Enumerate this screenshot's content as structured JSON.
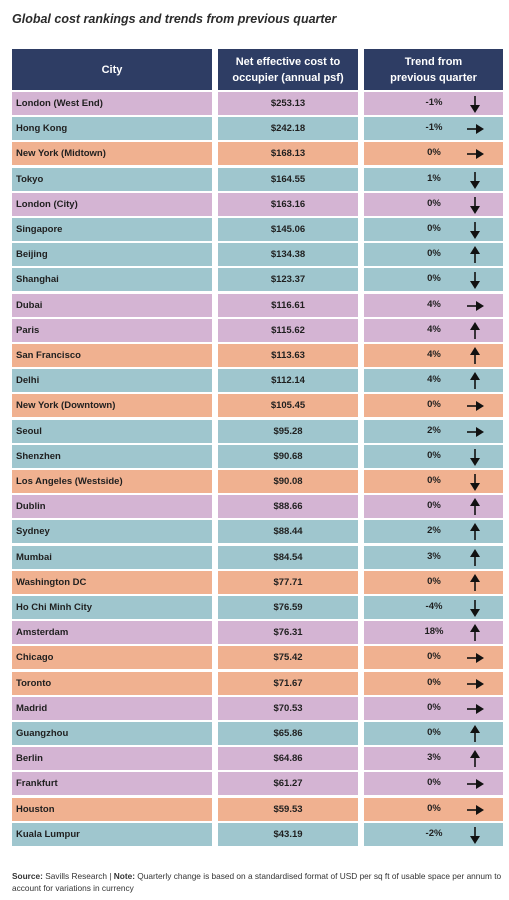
{
  "title": "Global cost rankings and trends from previous quarter",
  "chart_data": {
    "type": "table",
    "columns": [
      "City",
      "Net effective cost to occupier (annual psf)",
      "Trend from previous quarter"
    ],
    "rows": [
      {
        "city": "London (West End)",
        "cost": "$253.13",
        "trend": "-1%",
        "arrow": "down",
        "color": "lilac"
      },
      {
        "city": "Hong Kong",
        "cost": "$242.18",
        "trend": "-1%",
        "arrow": "right",
        "color": "teal"
      },
      {
        "city": "New York (Midtown)",
        "cost": "$168.13",
        "trend": "0%",
        "arrow": "right",
        "color": "orange"
      },
      {
        "city": "Tokyo",
        "cost": "$164.55",
        "trend": "1%",
        "arrow": "down",
        "color": "teal"
      },
      {
        "city": "London (City)",
        "cost": "$163.16",
        "trend": "0%",
        "arrow": "down",
        "color": "lilac"
      },
      {
        "city": "Singapore",
        "cost": "$145.06",
        "trend": "0%",
        "arrow": "down",
        "color": "teal"
      },
      {
        "city": "Beijing",
        "cost": "$134.38",
        "trend": "0%",
        "arrow": "up",
        "color": "teal"
      },
      {
        "city": "Shanghai",
        "cost": "$123.37",
        "trend": "0%",
        "arrow": "down",
        "color": "teal"
      },
      {
        "city": "Dubai",
        "cost": "$116.61",
        "trend": "4%",
        "arrow": "right",
        "color": "lilac"
      },
      {
        "city": "Paris",
        "cost": "$115.62",
        "trend": "4%",
        "arrow": "up",
        "color": "lilac"
      },
      {
        "city": "San Francisco",
        "cost": "$113.63",
        "trend": "4%",
        "arrow": "up",
        "color": "orange"
      },
      {
        "city": "Delhi",
        "cost": "$112.14",
        "trend": "4%",
        "arrow": "up",
        "color": "teal"
      },
      {
        "city": "New York (Downtown)",
        "cost": "$105.45",
        "trend": "0%",
        "arrow": "right",
        "color": "orange"
      },
      {
        "city": "Seoul",
        "cost": "$95.28",
        "trend": "2%",
        "arrow": "right",
        "color": "teal"
      },
      {
        "city": "Shenzhen",
        "cost": "$90.68",
        "trend": "0%",
        "arrow": "down",
        "color": "teal"
      },
      {
        "city": "Los Angeles (Westside)",
        "cost": "$90.08",
        "trend": "0%",
        "arrow": "down",
        "color": "orange"
      },
      {
        "city": "Dublin",
        "cost": "$88.66",
        "trend": "0%",
        "arrow": "up",
        "color": "lilac"
      },
      {
        "city": "Sydney",
        "cost": "$88.44",
        "trend": "2%",
        "arrow": "up",
        "color": "teal"
      },
      {
        "city": "Mumbai",
        "cost": "$84.54",
        "trend": "3%",
        "arrow": "up",
        "color": "teal"
      },
      {
        "city": "Washington DC",
        "cost": "$77.71",
        "trend": "0%",
        "arrow": "up",
        "color": "orange"
      },
      {
        "city": "Ho Chi Minh City",
        "cost": "$76.59",
        "trend": "-4%",
        "arrow": "down",
        "color": "teal"
      },
      {
        "city": "Amsterdam",
        "cost": "$76.31",
        "trend": "18%",
        "arrow": "up",
        "color": "lilac"
      },
      {
        "city": "Chicago",
        "cost": "$75.42",
        "trend": "0%",
        "arrow": "right",
        "color": "orange"
      },
      {
        "city": "Toronto",
        "cost": "$71.67",
        "trend": "0%",
        "arrow": "right",
        "color": "orange"
      },
      {
        "city": "Madrid",
        "cost": "$70.53",
        "trend": "0%",
        "arrow": "right",
        "color": "lilac"
      },
      {
        "city": "Guangzhou",
        "cost": "$65.86",
        "trend": "0%",
        "arrow": "up",
        "color": "teal"
      },
      {
        "city": "Berlin",
        "cost": "$64.86",
        "trend": "3%",
        "arrow": "up",
        "color": "lilac"
      },
      {
        "city": "Frankfurt",
        "cost": "$61.27",
        "trend": "0%",
        "arrow": "right",
        "color": "lilac"
      },
      {
        "city": "Houston",
        "cost": "$59.53",
        "trend": "0%",
        "arrow": "right",
        "color": "orange"
      },
      {
        "city": "Kuala Lumpur",
        "cost": "$43.19",
        "trend": "-2%",
        "arrow": "down",
        "color": "teal"
      }
    ]
  },
  "headers": {
    "city": "City",
    "cost": "Net effective cost to\noccupier (annual psf)",
    "trend": "Trend from\nprevious quarter"
  },
  "colors": {
    "header": "#2e3d64",
    "lilac": "#d4b4d3",
    "teal": "#9fc6ce",
    "orange": "#f0b190"
  },
  "footer": {
    "source_label": "Source:",
    "source_text": " Savills Research | ",
    "note_label": "Note:",
    "note_text": " Quarterly change is based on a standardised format of USD per sq ft of usable space per annum to account for variations in currency"
  }
}
